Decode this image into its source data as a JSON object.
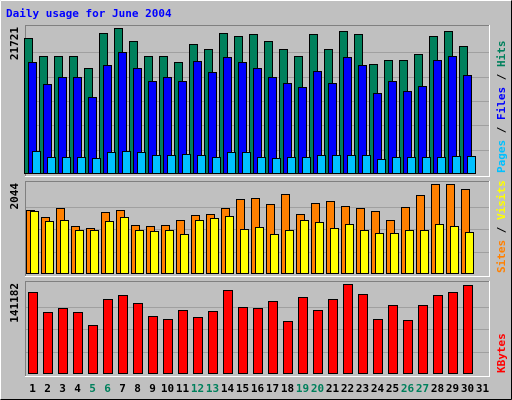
{
  "chart_data": {
    "type": "bar",
    "title": "Daily usage for June 2004",
    "colors": {
      "background": "#c0c0c0",
      "plot": "#c0c0c0",
      "title": "#0000ff",
      "hits": "#00805c",
      "files": "#0000ff",
      "pages": "#00c0ff",
      "visits": "#ffff00",
      "sites": "#ff8000",
      "kbytes": "#ff0000",
      "weekend_label": "#00805c",
      "weekday_label": "#000000"
    },
    "days": [
      "1",
      "2",
      "3",
      "4",
      "5",
      "6",
      "7",
      "8",
      "9",
      "10",
      "11",
      "12",
      "13",
      "14",
      "15",
      "16",
      "17",
      "18",
      "19",
      "20",
      "21",
      "22",
      "23",
      "24",
      "25",
      "26",
      "27",
      "28",
      "29",
      "30",
      "31"
    ],
    "weekend_days": [
      "5",
      "6",
      "12",
      "13",
      "19",
      "20",
      "26",
      "27"
    ],
    "panels": [
      {
        "id": "hits-files-pages",
        "right_label": [
          {
            "text": "Pages",
            "color": "#00c0ff"
          },
          {
            "text": " / ",
            "color": "#000000"
          },
          {
            "text": "Files",
            "color": "#0000ff"
          },
          {
            "text": " / ",
            "color": "#000000"
          },
          {
            "text": "Hits",
            "color": "#00805c"
          }
        ],
        "max_label": "21721",
        "ymax": 21721,
        "series": [
          {
            "name": "Hits",
            "color": "#00805c",
            "values": [
              20300,
              17600,
              17600,
              17600,
              15800,
              21000,
              21721,
              19800,
              17600,
              17600,
              16600,
              19400,
              18600,
              21000,
              20500,
              20800,
              19800,
              18600,
              17600,
              20800,
              18600,
              21300,
              20800,
              16300,
              17000,
              17000,
              17900,
              20500,
              21300,
              19100,
              0
            ]
          },
          {
            "name": "Files",
            "color": "#0000ff",
            "values": [
              16700,
              13400,
              14400,
              14400,
              11400,
              16200,
              18200,
              15800,
              13900,
              14500,
              13900,
              16800,
              15200,
              17400,
              16700,
              15800,
              14500,
              13600,
              13000,
              15300,
              13500,
              17400,
              16200,
              12000,
              13900,
              12300,
              13100,
              16900,
              17600,
              14800,
              0
            ]
          },
          {
            "name": "Pages",
            "color": "#00c0ff",
            "values": [
              3400,
              2600,
              2600,
              2600,
              2400,
              3200,
              3400,
              3200,
              2900,
              2900,
              3000,
              2800,
              2500,
              3300,
              3300,
              2600,
              2400,
              2600,
              2500,
              2900,
              2900,
              2900,
              2800,
              2200,
              2500,
              2600,
              2500,
              2600,
              2700,
              2700,
              0
            ]
          }
        ]
      },
      {
        "id": "sites-visits",
        "right_label": [
          {
            "text": "Sites",
            "color": "#ff8000"
          },
          {
            "text": " / ",
            "color": "#000000"
          },
          {
            "text": "Visits",
            "color": "#ffff00"
          }
        ],
        "max_label": "2044",
        "ymax": 2044,
        "series": [
          {
            "name": "Sites",
            "color": "#ff8000",
            "values": [
              1460,
              1300,
              1510,
              1100,
              1050,
              1400,
              1450,
              1110,
              1100,
              1120,
              1220,
              1350,
              1370,
              1510,
              1710,
              1720,
              1580,
              1820,
              1360,
              1610,
              1650,
              1550,
              1510,
              1420,
              1230,
              1520,
              1800,
              2044,
              2044,
              1920,
              0
            ]
          },
          {
            "name": "Visits",
            "color": "#ffff00",
            "values": [
              1420,
              1210,
              1230,
              1000,
              990,
              1210,
              1290,
              990,
              980,
              990,
              910,
              1230,
              1270,
              1310,
              1020,
              1070,
              900,
              1000,
              1220,
              1170,
              1050,
              1140,
              1000,
              920,
              920,
              1000,
              1010,
              1140,
              1090,
              950,
              0
            ]
          }
        ]
      },
      {
        "id": "kbytes",
        "right_label": [
          {
            "text": "KBytes",
            "color": "#ff0000"
          }
        ],
        "max_label": "141182",
        "ymax": 141182,
        "series": [
          {
            "name": "KBytes",
            "color": "#ff0000",
            "values": [
              128000,
              98000,
              104000,
              97000,
              77000,
              117000,
              124000,
              112000,
              91000,
              86000,
              100000,
              90000,
              99000,
              132000,
              105000,
              104000,
              114000,
              83000,
              121000,
              101000,
              118000,
              141182,
              125000,
              86000,
              109000,
              85000,
              108000,
              124000,
              128000,
              140000,
              0
            ]
          }
        ]
      }
    ]
  }
}
